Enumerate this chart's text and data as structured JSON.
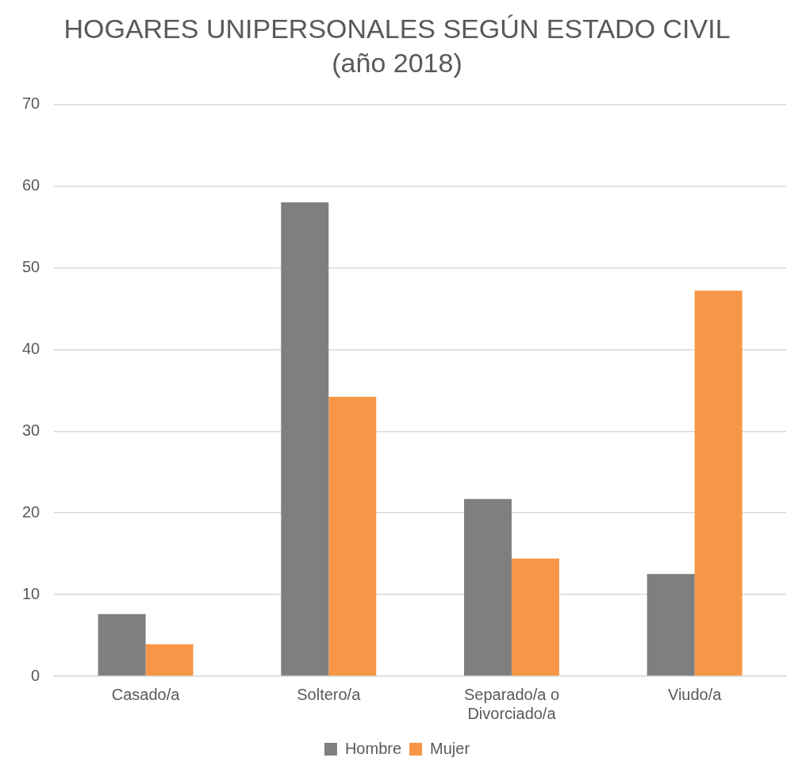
{
  "chart_data": {
    "type": "bar",
    "title": "HOGARES UNIPERSONALES SEGÚN ESTADO CIVIL",
    "subtitle": "(año 2018)",
    "categories": [
      "Casado/a",
      "Soltero/a",
      "Separado/a o Divorciado/a",
      "Viudo/a"
    ],
    "series": [
      {
        "name": "Hombre",
        "color": "#7f7f7f",
        "values": [
          7.6,
          58.0,
          21.7,
          12.5
        ]
      },
      {
        "name": "Mujer",
        "color": "#f79646",
        "values": [
          3.9,
          34.2,
          14.4,
          47.2
        ]
      }
    ],
    "ylim": [
      0,
      70
    ],
    "yticks": [
      0,
      10,
      20,
      30,
      40,
      50,
      60,
      70
    ],
    "grid": "y",
    "legend": "bottom"
  }
}
